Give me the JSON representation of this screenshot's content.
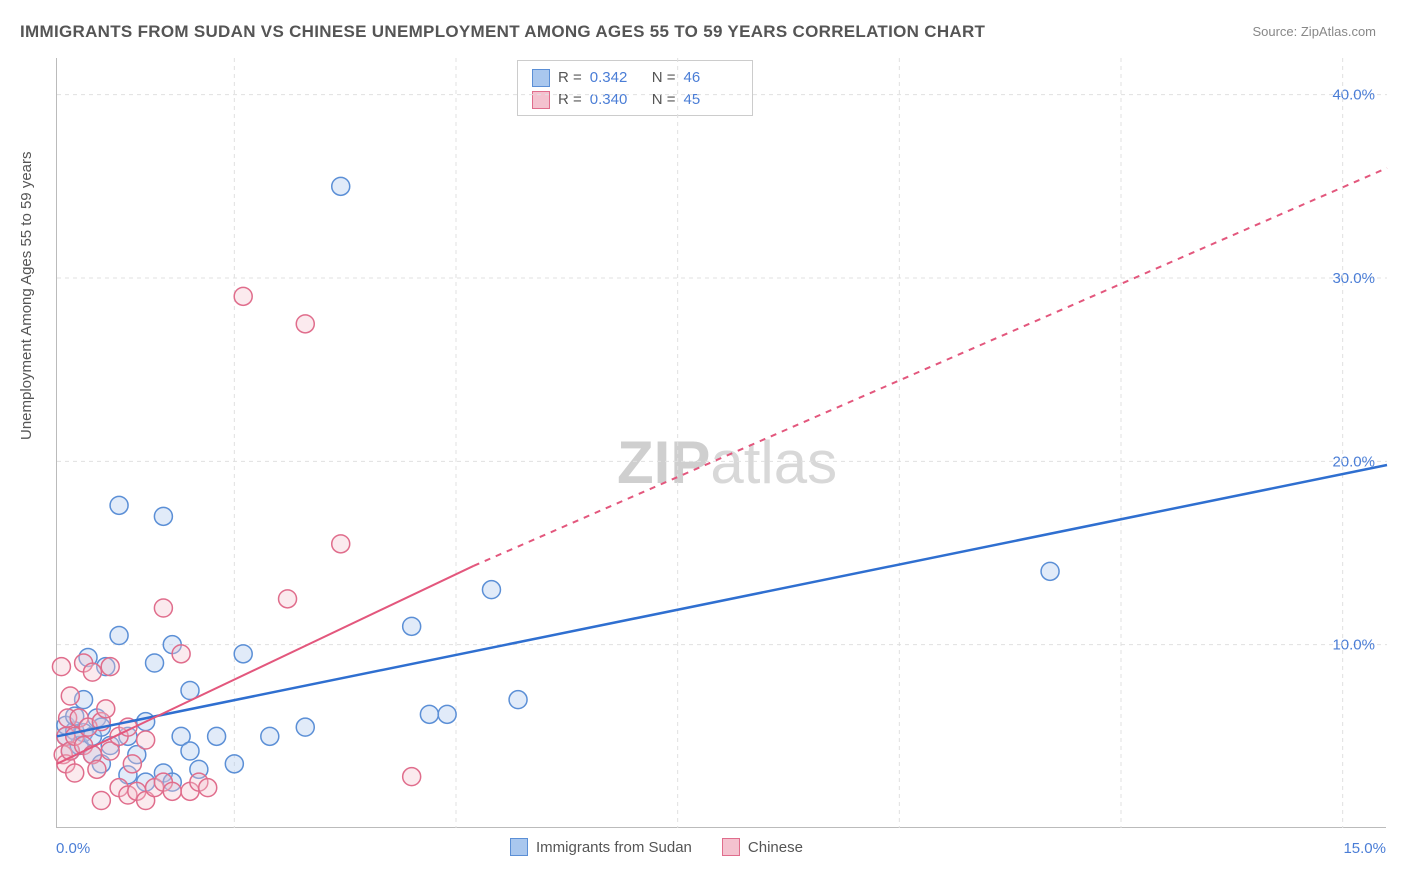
{
  "title": "IMMIGRANTS FROM SUDAN VS CHINESE UNEMPLOYMENT AMONG AGES 55 TO 59 YEARS CORRELATION CHART",
  "source": "Source: ZipAtlas.com",
  "y_axis_label": "Unemployment Among Ages 55 to 59 years",
  "watermark_left": "ZIP",
  "watermark_right": "atlas",
  "chart": {
    "type": "scatter",
    "xlim": [
      0,
      15
    ],
    "ylim": [
      0,
      42
    ],
    "x_tick_labels": {
      "left": "0.0%",
      "right": "15.0%"
    },
    "y_tick_labels": [
      "10.0%",
      "20.0%",
      "30.0%",
      "40.0%"
    ],
    "y_tick_values": [
      10,
      20,
      30,
      40
    ],
    "grid_color": "#e0e0e0",
    "grid_dash": "4,4",
    "background_color": "#ffffff",
    "axis_color": "#bbbbbb",
    "label_color": "#4a7dd6",
    "marker_radius": 9,
    "marker_stroke_width": 1.5,
    "marker_opacity": 0.35,
    "series": [
      {
        "name": "Immigrants from Sudan",
        "fill": "#a9c7ee",
        "stroke": "#5b8fd6",
        "r_value": "0.342",
        "n_value": "46",
        "trendline": {
          "solid": {
            "x1": 0.0,
            "y1": 5.0,
            "x2": 15.0,
            "y2": 19.8
          },
          "color": "#2f6fd0",
          "width": 2.5
        },
        "points": [
          [
            0.1,
            5.0
          ],
          [
            0.1,
            5.6
          ],
          [
            0.15,
            4.2
          ],
          [
            0.2,
            5.3
          ],
          [
            0.2,
            6.1
          ],
          [
            0.25,
            4.5
          ],
          [
            0.3,
            5.2
          ],
          [
            0.3,
            7.0
          ],
          [
            0.35,
            9.3
          ],
          [
            0.4,
            5.0
          ],
          [
            0.4,
            4.0
          ],
          [
            0.45,
            6.0
          ],
          [
            0.5,
            5.5
          ],
          [
            0.5,
            3.5
          ],
          [
            0.55,
            8.8
          ],
          [
            0.6,
            4.5
          ],
          [
            0.7,
            10.5
          ],
          [
            0.7,
            17.6
          ],
          [
            0.8,
            5.0
          ],
          [
            0.8,
            2.9
          ],
          [
            0.9,
            4.0
          ],
          [
            1.0,
            5.8
          ],
          [
            1.0,
            2.5
          ],
          [
            1.1,
            9.0
          ],
          [
            1.2,
            17.0
          ],
          [
            1.2,
            3.0
          ],
          [
            1.3,
            10.0
          ],
          [
            1.3,
            2.5
          ],
          [
            1.4,
            5.0
          ],
          [
            1.5,
            7.5
          ],
          [
            1.5,
            4.2
          ],
          [
            1.6,
            3.2
          ],
          [
            1.8,
            5.0
          ],
          [
            2.0,
            3.5
          ],
          [
            2.1,
            9.5
          ],
          [
            2.4,
            5.0
          ],
          [
            2.8,
            5.5
          ],
          [
            3.2,
            35.0
          ],
          [
            4.0,
            11.0
          ],
          [
            4.2,
            6.2
          ],
          [
            4.4,
            6.2
          ],
          [
            4.9,
            13.0
          ],
          [
            5.2,
            7.0
          ],
          [
            11.2,
            14.0
          ]
        ]
      },
      {
        "name": "Chinese",
        "fill": "#f4c2cf",
        "stroke": "#e06d8c",
        "r_value": "0.340",
        "n_value": "45",
        "trendline": {
          "solid": {
            "x1": 0.0,
            "y1": 3.5,
            "x2": 4.7,
            "y2": 14.3
          },
          "dashed": {
            "x1": 4.7,
            "y1": 14.3,
            "x2": 15.0,
            "y2": 36.0
          },
          "color": "#e3577d",
          "width": 2
        },
        "points": [
          [
            0.05,
            8.8
          ],
          [
            0.07,
            4.0
          ],
          [
            0.1,
            5.0
          ],
          [
            0.1,
            3.5
          ],
          [
            0.12,
            6.0
          ],
          [
            0.15,
            4.2
          ],
          [
            0.15,
            7.2
          ],
          [
            0.2,
            5.0
          ],
          [
            0.2,
            3.0
          ],
          [
            0.25,
            6.0
          ],
          [
            0.3,
            4.5
          ],
          [
            0.3,
            9.0
          ],
          [
            0.35,
            5.5
          ],
          [
            0.4,
            4.0
          ],
          [
            0.4,
            8.5
          ],
          [
            0.45,
            3.2
          ],
          [
            0.5,
            5.8
          ],
          [
            0.5,
            1.5
          ],
          [
            0.55,
            6.5
          ],
          [
            0.6,
            4.2
          ],
          [
            0.6,
            8.8
          ],
          [
            0.7,
            5.0
          ],
          [
            0.7,
            2.2
          ],
          [
            0.8,
            1.8
          ],
          [
            0.8,
            5.5
          ],
          [
            0.85,
            3.5
          ],
          [
            0.9,
            2.0
          ],
          [
            1.0,
            4.8
          ],
          [
            1.0,
            1.5
          ],
          [
            1.1,
            2.2
          ],
          [
            1.2,
            12.0
          ],
          [
            1.2,
            2.5
          ],
          [
            1.3,
            2.0
          ],
          [
            1.4,
            9.5
          ],
          [
            1.5,
            2.0
          ],
          [
            1.6,
            2.5
          ],
          [
            1.7,
            2.2
          ],
          [
            2.1,
            29.0
          ],
          [
            2.6,
            12.5
          ],
          [
            2.8,
            27.5
          ],
          [
            3.2,
            15.5
          ],
          [
            4.0,
            2.8
          ]
        ]
      }
    ]
  },
  "legend_bottom": [
    {
      "label": "Immigrants from Sudan",
      "fill": "#a9c7ee",
      "stroke": "#5b8fd6"
    },
    {
      "label": "Chinese",
      "fill": "#f4c2cf",
      "stroke": "#e06d8c"
    }
  ]
}
